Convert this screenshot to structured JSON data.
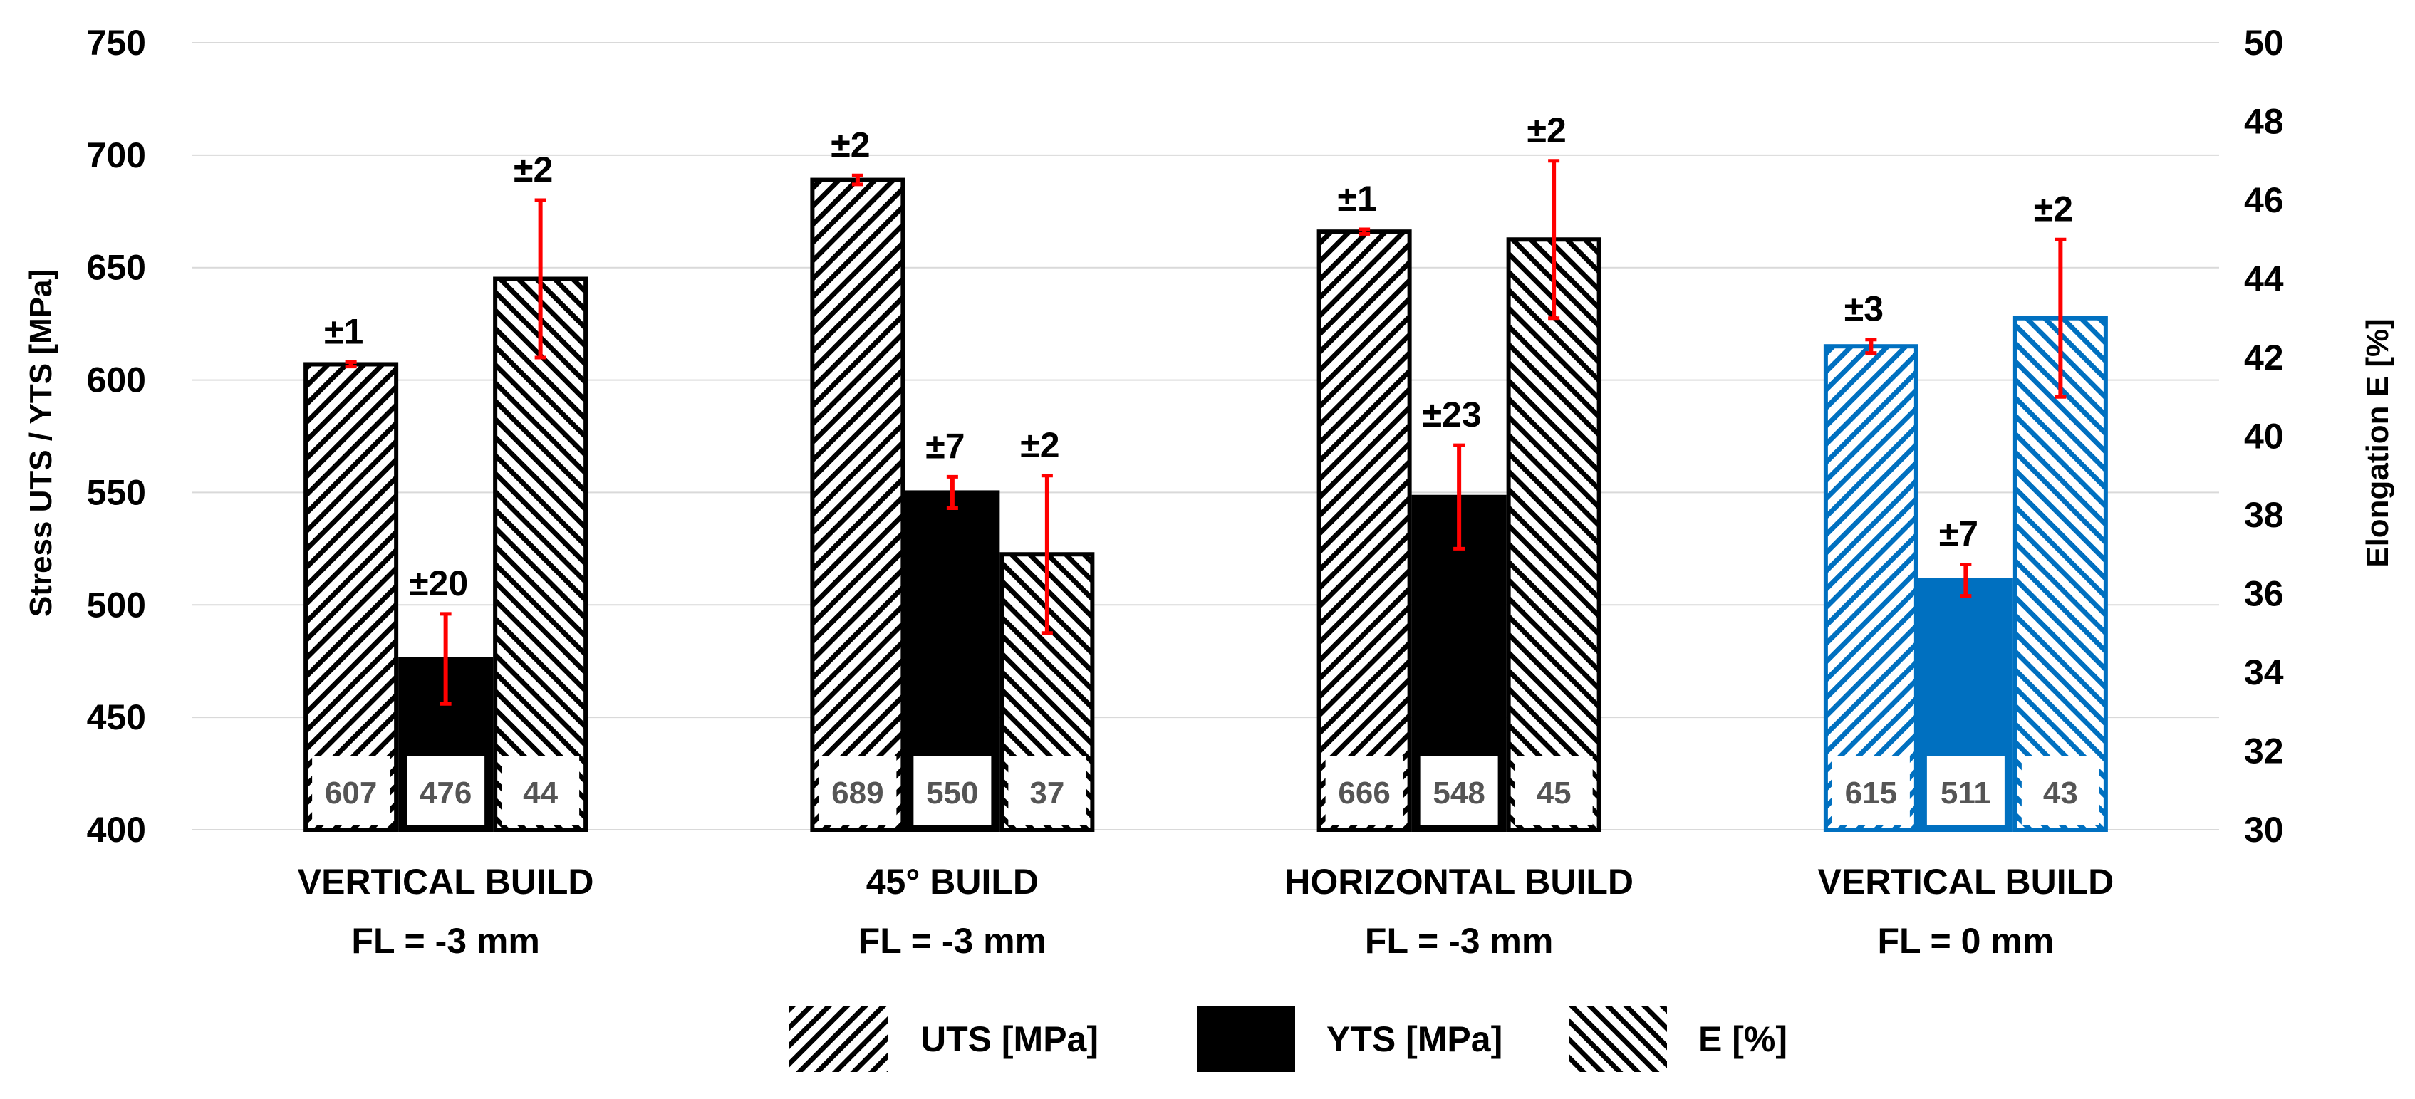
{
  "chart_data": {
    "type": "bar",
    "title": "",
    "categories": [
      [
        "VERTICAL BUILD",
        "FL = -3 mm"
      ],
      [
        "45° BUILD",
        "FL = -3 mm"
      ],
      [
        "HORIZONTAL BUILD",
        "FL = -3 mm"
      ],
      [
        "VERTICAL BUILD",
        "FL = 0 mm"
      ]
    ],
    "category_colors": [
      "#000000",
      "#000000",
      "#000000",
      "#0070C0"
    ],
    "series": [
      {
        "name": "UTS [MPa]",
        "axis": "left",
        "pattern": "hatch-forward",
        "values": [
          607,
          689,
          666,
          615
        ],
        "value_labels": [
          "607",
          "689",
          "666",
          "615"
        ],
        "errors": [
          1,
          2,
          1,
          3
        ],
        "error_labels": [
          "±1",
          "±2",
          "±1",
          "±3"
        ]
      },
      {
        "name": "YTS [MPa]",
        "axis": "left",
        "pattern": "solid",
        "values": [
          476,
          550,
          548,
          511
        ],
        "value_labels": [
          "476",
          "550",
          "548",
          "511"
        ],
        "errors": [
          20,
          7,
          23,
          7
        ],
        "error_labels": [
          "±20",
          "±7",
          "±23",
          "±7"
        ]
      },
      {
        "name": "E [%]",
        "axis": "right",
        "pattern": "hatch-backward",
        "values": [
          44,
          37,
          45,
          43
        ],
        "value_labels": [
          "44",
          "37",
          "45",
          "43"
        ],
        "errors": [
          2,
          2,
          2,
          2
        ],
        "error_labels": [
          "±2",
          "±2",
          "±2",
          "±2"
        ]
      }
    ],
    "y_left": {
      "label": "Stress UTS / YTS  [MPa]",
      "ylim": [
        400,
        750
      ],
      "ticks": [
        400,
        450,
        500,
        550,
        600,
        650,
        700,
        750
      ]
    },
    "y_right": {
      "label": "Elongation E [%]",
      "ylim": [
        30,
        50
      ],
      "ticks": [
        30,
        32,
        34,
        36,
        38,
        40,
        42,
        44,
        46,
        48,
        50
      ]
    },
    "error_bar_color": "#FF0000",
    "grid": true,
    "legend_position": "bottom"
  }
}
